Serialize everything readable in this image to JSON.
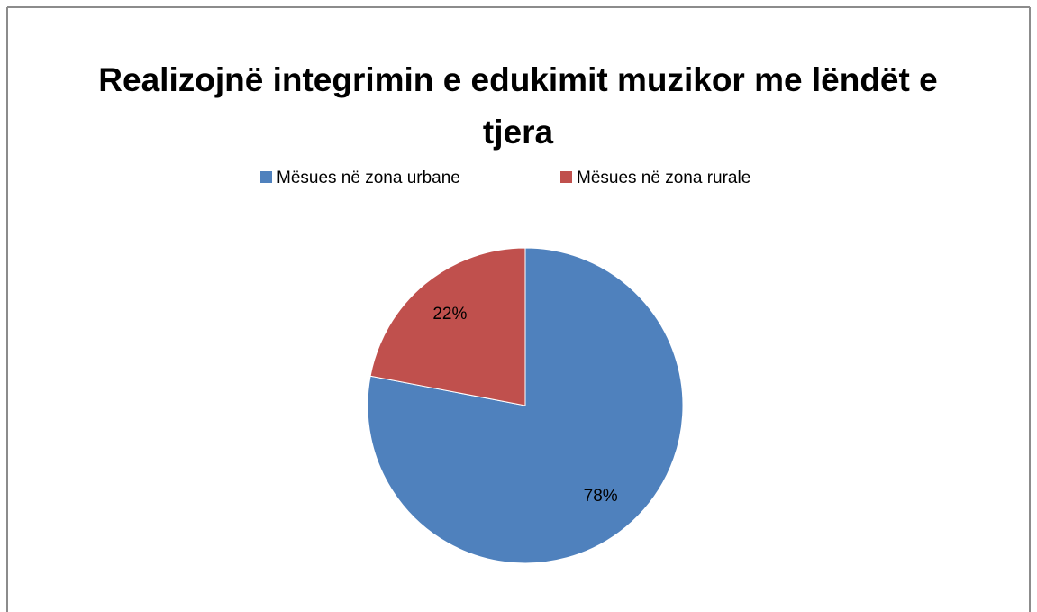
{
  "chart_data": {
    "type": "pie",
    "title": "Realizojnë integrimin e edukimit muzikor me lëndët e tjera",
    "categories": [
      "Mësues në zona urbane",
      "Mësues në zona rurale"
    ],
    "values": [
      78,
      22
    ],
    "value_labels": [
      "78%",
      "22%"
    ],
    "colors": [
      "#4f81bd",
      "#c0504d"
    ],
    "legend": "top"
  }
}
